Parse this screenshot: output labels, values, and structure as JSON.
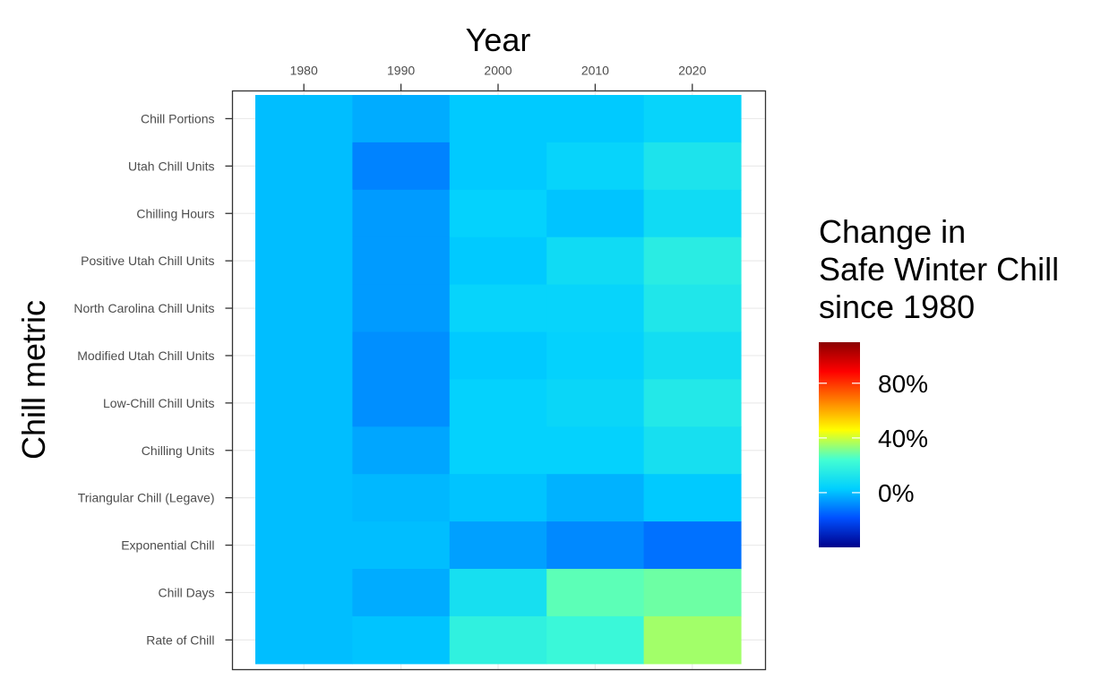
{
  "chart_data": {
    "type": "heatmap",
    "xlabel": "Year",
    "ylabel": "Chill metric",
    "x": [
      1980,
      1990,
      2000,
      2010,
      2020
    ],
    "x_axis_position": "top",
    "categories": [
      "Chill Portions",
      "Utah Chill Units",
      "Chilling Hours",
      "Positive Utah Chill Units",
      "North Carolina Chill Units",
      "Modified Utah Chill Units",
      "Low-Chill Chill Units",
      "Chilling Units",
      "Triangular Chill (Legave)",
      "Exponential Chill",
      "Chill Days",
      "Rate of Chill"
    ],
    "values": [
      [
        0,
        -3,
        2,
        2,
        5
      ],
      [
        0,
        -10,
        2,
        5,
        12
      ],
      [
        0,
        -6,
        4,
        1,
        8
      ],
      [
        0,
        -6,
        2,
        8,
        16
      ],
      [
        0,
        -6,
        5,
        5,
        13
      ],
      [
        0,
        -8,
        2,
        4,
        9
      ],
      [
        0,
        -8,
        4,
        6,
        14
      ],
      [
        0,
        -4,
        4,
        4,
        10
      ],
      [
        0,
        -1,
        1,
        -2,
        2
      ],
      [
        0,
        0,
        -5,
        -9,
        -13
      ],
      [
        0,
        -3,
        10,
        27,
        29
      ],
      [
        0,
        1,
        18,
        21,
        35
      ]
    ],
    "legend": {
      "title": [
        "Change in",
        "Safe Winter Chill",
        "since 1980"
      ],
      "tick_labels": [
        "0%",
        "40%",
        "80%"
      ],
      "tick_values": [
        0,
        40,
        80
      ],
      "range": [
        -40,
        110
      ],
      "placement": "right",
      "colors": [
        "#00008B",
        "#0050FF",
        "#00CFFF",
        "#44FFD2",
        "#FFFF00",
        "#FF8000",
        "#FF0000",
        "#8B0000"
      ]
    },
    "grid": true
  }
}
